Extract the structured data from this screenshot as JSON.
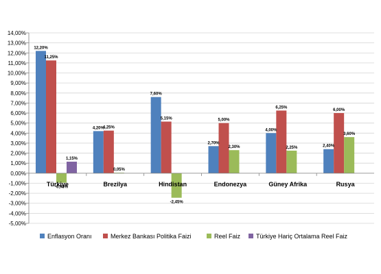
{
  "chart_data": {
    "type": "bar",
    "title": "",
    "xlabel": "",
    "ylabel": "",
    "ylim": [
      -5,
      14
    ],
    "y_ticks": [
      -5,
      -4,
      -3,
      -2,
      -1,
      0,
      1,
      2,
      3,
      4,
      5,
      6,
      7,
      8,
      9,
      10,
      11,
      12,
      13,
      14
    ],
    "y_tick_labels": [
      "-5,00%",
      "-4,00%",
      "-3,00%",
      "-2,00%",
      "-1,00%",
      "0,00%",
      "1,00%",
      "2,00%",
      "3,00%",
      "4,00%",
      "5,00%",
      "6,00%",
      "7,00%",
      "8,00%",
      "9,00%",
      "10,00%",
      "11,00%",
      "12,00%",
      "13,00%",
      "14,00%"
    ],
    "grid": true,
    "legend_position": "bottom",
    "categories": [
      "Türkiye",
      "Brezilya",
      "Hindistan",
      "Endonezya",
      "Güney Afrika",
      "Rusya"
    ],
    "series": [
      {
        "name": "Enflasyon Oranı",
        "color": "#4F81BD",
        "values": [
          12.2,
          4.2,
          7.6,
          2.7,
          4.0,
          2.4
        ],
        "labels": [
          "12,20%",
          "4,20%",
          "7,60%",
          "2,70%",
          "4,00%",
          "2,40%"
        ]
      },
      {
        "name": "Merkez Bankası Politika Faizi",
        "color": "#C0504D",
        "values": [
          11.25,
          4.25,
          5.15,
          5.0,
          6.25,
          6.0
        ],
        "labels": [
          "11,25%",
          "4,25%",
          "5,15%",
          "5,00%",
          "6,25%",
          "6,00%"
        ]
      },
      {
        "name": "Reel Faiz",
        "color": "#9BBB59",
        "values": [
          -0.95,
          0.05,
          -2.45,
          2.3,
          2.25,
          3.6
        ],
        "labels": [
          "-0,95%",
          "0,05%",
          "-2,45%",
          "2,30%",
          "2,25%",
          "3,60%"
        ]
      },
      {
        "name": "Türkiye Hariç Ortalama Reel Faiz",
        "color": "#8064A2",
        "values": [
          1.15,
          null,
          null,
          null,
          null,
          null
        ],
        "labels": [
          "1,15%",
          null,
          null,
          null,
          null,
          null
        ]
      }
    ]
  }
}
